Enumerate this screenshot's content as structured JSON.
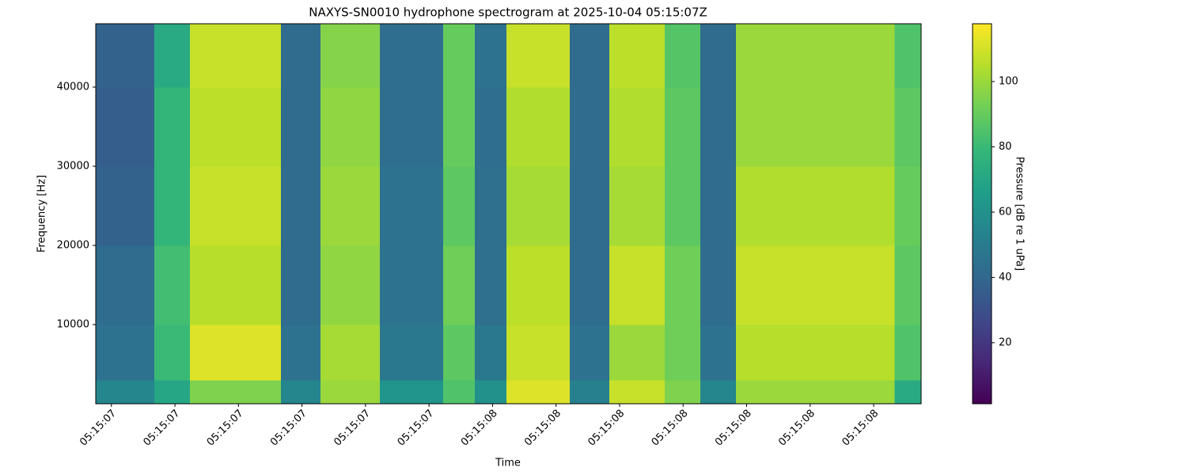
{
  "chart_data": {
    "type": "heatmap",
    "title": "NAXYS-SN0010 hydrophone spectrogram at 2025-10-04 05:15:07Z",
    "xlabel": "Time",
    "ylabel": "Frequency [Hz]",
    "colorbar_label": "Pressure [dB re 1 uPa]",
    "colormap": "viridis",
    "xlim": [
      7.063,
      9.012
    ],
    "ylim": [
      0,
      48000
    ],
    "clim": [
      1.3,
      117.7
    ],
    "xticks": [
      {
        "value": 7.1,
        "label": "05:15:07"
      },
      {
        "value": 7.25,
        "label": "05:15:07"
      },
      {
        "value": 7.4,
        "label": "05:15:07"
      },
      {
        "value": 7.55,
        "label": "05:15:07"
      },
      {
        "value": 7.7,
        "label": "05:15:07"
      },
      {
        "value": 7.85,
        "label": "05:15:07"
      },
      {
        "value": 8.0,
        "label": "05:15:08"
      },
      {
        "value": 8.15,
        "label": "05:15:08"
      },
      {
        "value": 8.3,
        "label": "05:15:08"
      },
      {
        "value": 8.45,
        "label": "05:15:08"
      },
      {
        "value": 8.6,
        "label": "05:15:08"
      },
      {
        "value": 8.75,
        "label": "05:15:08"
      },
      {
        "value": 8.9,
        "label": "05:15:08"
      }
    ],
    "yticks": [
      10000,
      20000,
      30000,
      40000
    ],
    "cticks": [
      20,
      40,
      60,
      80,
      100
    ],
    "xbins": [
      7.063,
      7.201,
      7.285,
      7.5,
      7.594,
      7.734,
      7.883,
      7.958,
      8.033,
      8.182,
      8.276,
      8.407,
      8.491,
      8.575,
      8.949,
      9.012
    ],
    "ybins": [
      0,
      3000,
      10000,
      20000,
      30000,
      40000,
      48000
    ],
    "values": [
      [
        55,
        70,
        95,
        55,
        100,
        62,
        85,
        60,
        112,
        52,
        108,
        95,
        55,
        100,
        72
      ],
      [
        45,
        80,
        112,
        45,
        102,
        48,
        88,
        48,
        108,
        45,
        100,
        92,
        45,
        105,
        85
      ],
      [
        42,
        82,
        105,
        42,
        98,
        45,
        92,
        44,
        106,
        42,
        108,
        92,
        42,
        108,
        88
      ],
      [
        38,
        78,
        108,
        42,
        100,
        45,
        88,
        44,
        102,
        42,
        102,
        88,
        42,
        104,
        90
      ],
      [
        36,
        78,
        106,
        42,
        98,
        43,
        90,
        43,
        104,
        42,
        104,
        88,
        42,
        100,
        88
      ],
      [
        38,
        72,
        108,
        42,
        96,
        43,
        90,
        45,
        108,
        42,
        106,
        86,
        42,
        100,
        85
      ]
    ]
  }
}
